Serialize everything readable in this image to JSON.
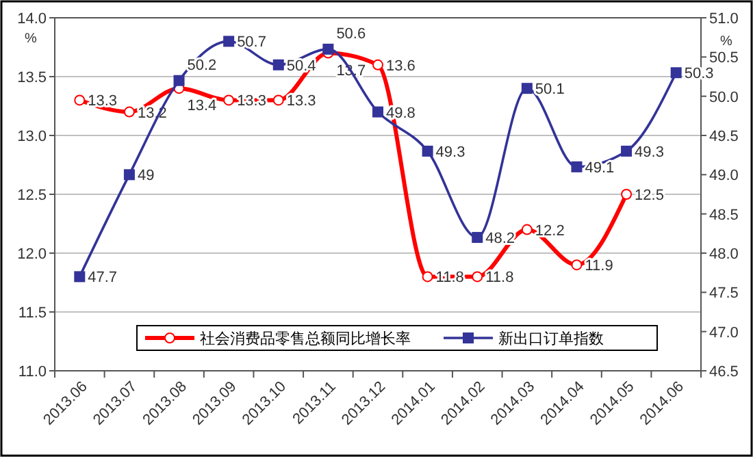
{
  "chart_data": {
    "type": "line",
    "ylabel": "%",
    "y2label": "%",
    "categories": [
      "2013.06",
      "2013.07",
      "2013.08",
      "2013.09",
      "2013.10",
      "2013.11",
      "2013.12",
      "2014.01",
      "2014.02",
      "2014.03",
      "2014.04",
      "2014.05",
      "2014.06"
    ],
    "series": [
      {
        "name": "社会消费品零售总额同比增长率",
        "color": "#ff0000",
        "marker": "circle",
        "values": [
          13.3,
          13.2,
          13.4,
          13.3,
          13.3,
          13.7,
          13.6,
          11.8,
          11.8,
          12.2,
          11.9,
          12.5,
          null
        ]
      },
      {
        "name": "新出口订单指数",
        "color": "#333399",
        "marker": "square",
        "axis": "y2",
        "values": [
          47.7,
          49,
          50.2,
          50.7,
          50.4,
          50.6,
          49.8,
          49.3,
          48.2,
          50.1,
          49.1,
          49.3,
          50.3
        ]
      }
    ],
    "data_labels": true,
    "ylim": [
      11,
      14
    ],
    "yticks": [
      {
        "value": 11,
        "label": "11.0"
      },
      {
        "value": 11.5,
        "label": "11.5"
      },
      {
        "value": 12,
        "label": "12.0"
      },
      {
        "value": 12.5,
        "label": "12.5"
      },
      {
        "value": 13,
        "label": "13.0"
      },
      {
        "value": 13.5,
        "label": "13.5"
      },
      {
        "value": 14,
        "label": "14.0"
      }
    ],
    "y2lim": [
      46.5,
      51
    ],
    "y2ticks": [
      46.5,
      {
        "value": 47,
        "label": "47.0"
      },
      47.5,
      {
        "value": 48,
        "label": "48.0"
      },
      48.5,
      {
        "value": 49,
        "label": "49.0"
      },
      49.5,
      {
        "value": 50,
        "label": "50.0"
      },
      50.5,
      {
        "value": 51,
        "label": "51.0"
      }
    ],
    "grid": "y",
    "legend": "bottom"
  }
}
